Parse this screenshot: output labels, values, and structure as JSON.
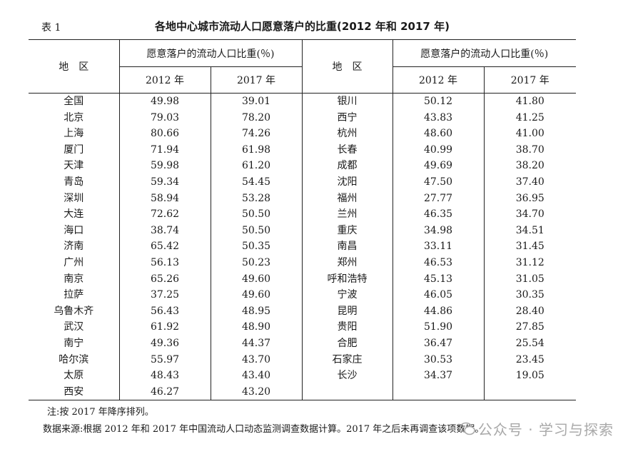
{
  "caption": {
    "table_no": "表 1",
    "title": "各地中心城市流动人口愿意落户的比重(2012 年和 2017 年)"
  },
  "header": {
    "region": "地　区",
    "group": "愿意落户的流动人口比重(％)",
    "y2012": "2012 年",
    "y2017": "2017 年"
  },
  "rows": [
    {
      "l": [
        "全国",
        "49.98",
        "39.01"
      ],
      "r": [
        "银川",
        "50.12",
        "41.80"
      ]
    },
    {
      "l": [
        "北京",
        "79.03",
        "78.20"
      ],
      "r": [
        "西宁",
        "43.83",
        "41.25"
      ]
    },
    {
      "l": [
        "上海",
        "80.66",
        "74.26"
      ],
      "r": [
        "杭州",
        "48.60",
        "41.00"
      ]
    },
    {
      "l": [
        "厦门",
        "71.94",
        "61.98"
      ],
      "r": [
        "长春",
        "40.99",
        "38.70"
      ]
    },
    {
      "l": [
        "天津",
        "59.98",
        "61.20"
      ],
      "r": [
        "成都",
        "49.69",
        "38.20"
      ]
    },
    {
      "l": [
        "青岛",
        "59.34",
        "54.45"
      ],
      "r": [
        "沈阳",
        "47.50",
        "37.40"
      ]
    },
    {
      "l": [
        "深圳",
        "58.94",
        "53.28"
      ],
      "r": [
        "福州",
        "27.77",
        "36.95"
      ]
    },
    {
      "l": [
        "大连",
        "72.62",
        "50.50"
      ],
      "r": [
        "兰州",
        "46.35",
        "34.70"
      ]
    },
    {
      "l": [
        "海口",
        "38.74",
        "50.50"
      ],
      "r": [
        "重庆",
        "34.98",
        "34.51"
      ]
    },
    {
      "l": [
        "济南",
        "65.42",
        "50.35"
      ],
      "r": [
        "南昌",
        "33.11",
        "31.45"
      ]
    },
    {
      "l": [
        "广州",
        "56.13",
        "50.23"
      ],
      "r": [
        "郑州",
        "46.53",
        "31.12"
      ]
    },
    {
      "l": [
        "南京",
        "65.26",
        "49.60"
      ],
      "r": [
        "呼和浩特",
        "45.13",
        "31.05"
      ]
    },
    {
      "l": [
        "拉萨",
        "37.25",
        "49.60"
      ],
      "r": [
        "宁波",
        "46.05",
        "30.35"
      ]
    },
    {
      "l": [
        "乌鲁木齐",
        "56.43",
        "48.95"
      ],
      "r": [
        "昆明",
        "44.86",
        "28.40"
      ]
    },
    {
      "l": [
        "武汉",
        "61.92",
        "48.90"
      ],
      "r": [
        "贵阳",
        "51.90",
        "27.85"
      ]
    },
    {
      "l": [
        "南宁",
        "49.36",
        "44.37"
      ],
      "r": [
        "合肥",
        "36.47",
        "25.54"
      ]
    },
    {
      "l": [
        "哈尔滨",
        "55.97",
        "43.70"
      ],
      "r": [
        "石家庄",
        "30.53",
        "23.45"
      ]
    },
    {
      "l": [
        "太原",
        "48.43",
        "43.40"
      ],
      "r": [
        "长沙",
        "34.37",
        "19.05"
      ]
    },
    {
      "l": [
        "西安",
        "46.27",
        "43.20"
      ],
      "r": [
        "",
        "",
        ""
      ]
    }
  ],
  "notes": {
    "note": "注:按 2017 年降序排列。",
    "source": "数据来源:根据 2012 年和 2017 年中国流动人口动态监测调查数据计算。2017 年之后未再调查该项数据。"
  },
  "watermark": {
    "text": "公众号 · 学习与探索",
    "icon": "wechat-icon"
  }
}
